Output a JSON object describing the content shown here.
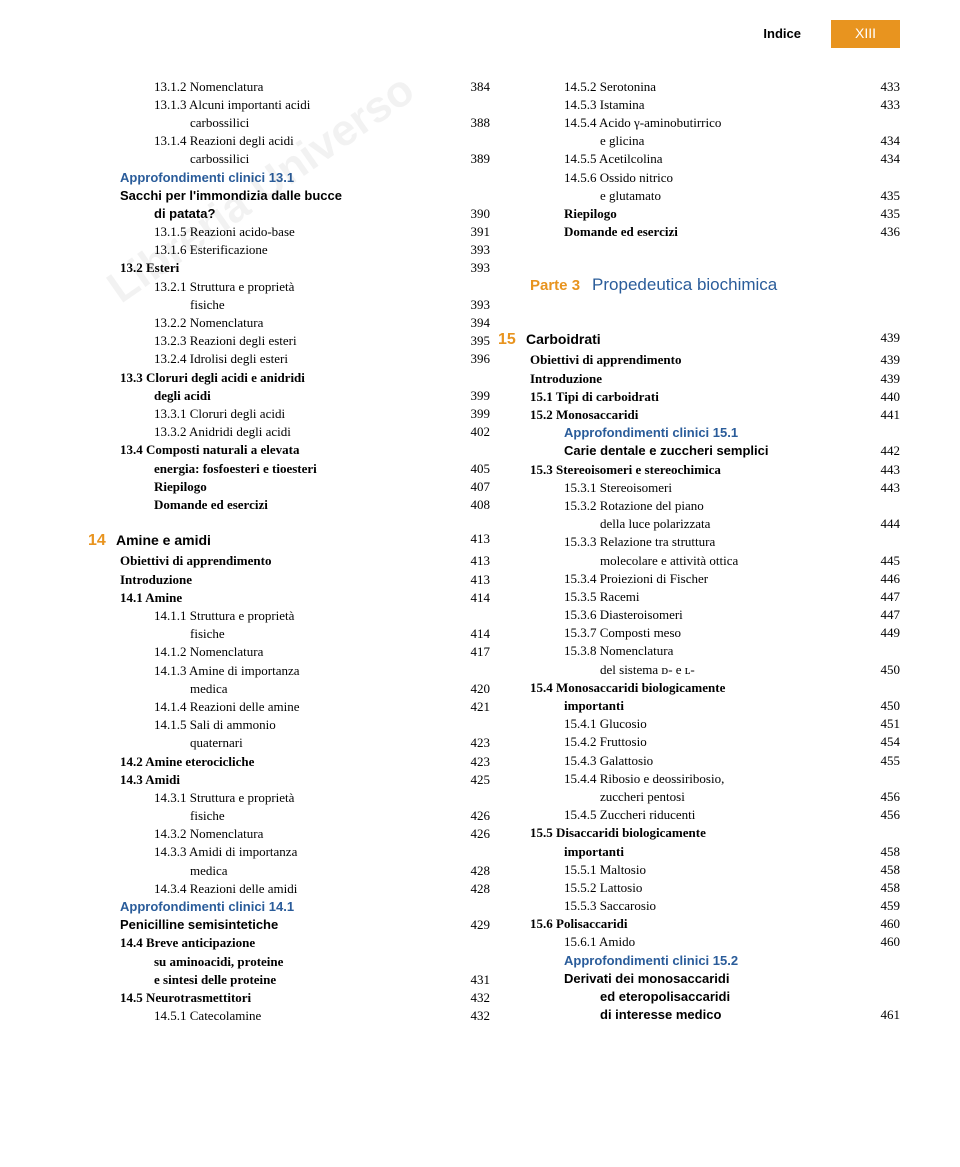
{
  "header": {
    "title": "Indice",
    "page": "XIII"
  },
  "watermark": "Libreria Universo",
  "left": [
    {
      "i": 2,
      "t": "13.1.2 Nomenclatura",
      "p": "384"
    },
    {
      "i": 2,
      "t": "13.1.3 Alcuni importanti acidi",
      "p": ""
    },
    {
      "i": 3,
      "t": "carbossilici",
      "p": "388"
    },
    {
      "i": 2,
      "t": "13.1.4 Reazioni degli acidi",
      "p": ""
    },
    {
      "i": 3,
      "t": "carbossilici",
      "p": "389"
    },
    {
      "i": 1,
      "t": "Approfondimenti clinici 13.1",
      "p": "",
      "cls": "condensed bold blue"
    },
    {
      "i": 1,
      "t": "Sacchi per l'immondizia dalle bucce",
      "p": "",
      "cls": "condensed bold"
    },
    {
      "i": 2,
      "t": "di patata?",
      "p": "390",
      "cls": "condensed bold",
      "pcls": ""
    },
    {
      "i": 2,
      "t": "13.1.5 Reazioni acido-base",
      "p": "391"
    },
    {
      "i": 2,
      "t": "13.1.6 Esterificazione",
      "p": "393"
    },
    {
      "i": 1,
      "t": "13.2 Esteri",
      "p": "393",
      "cls": "bold"
    },
    {
      "i": 2,
      "t": "13.2.1 Struttura e proprietà",
      "p": ""
    },
    {
      "i": 3,
      "t": "fisiche",
      "p": "393"
    },
    {
      "i": 2,
      "t": "13.2.2 Nomenclatura",
      "p": "394"
    },
    {
      "i": 2,
      "t": "13.2.3 Reazioni degli esteri",
      "p": "395"
    },
    {
      "i": 2,
      "t": "13.2.4 Idrolisi degli esteri",
      "p": "396"
    },
    {
      "i": 1,
      "t": "13.3 Cloruri degli acidi e anidridi",
      "p": "",
      "cls": "bold"
    },
    {
      "i": 2,
      "t": "degli acidi",
      "p": "399",
      "cls": "bold"
    },
    {
      "i": 2,
      "t": "13.3.1 Cloruri degli acidi",
      "p": "399"
    },
    {
      "i": 2,
      "t": "13.3.2 Anidridi degli acidi",
      "p": "402"
    },
    {
      "i": 1,
      "t": "13.4 Composti naturali a elevata",
      "p": "",
      "cls": "bold"
    },
    {
      "i": 2,
      "t": "energia: fosfoesteri e tioesteri",
      "p": "405",
      "cls": "bold"
    },
    {
      "i": 2,
      "t": "Riepilogo",
      "p": "407",
      "cls": "bold"
    },
    {
      "i": 2,
      "t": "Domande ed esercizi",
      "p": "408",
      "cls": "bold"
    },
    {
      "type": "spacer"
    },
    {
      "type": "chapter",
      "num": "14",
      "t": "Amine e amidi",
      "p": "413"
    },
    {
      "i": 1,
      "t": "Obiettivi di apprendimento",
      "p": "413",
      "cls": "bold"
    },
    {
      "i": 1,
      "t": "Introduzione",
      "p": "413",
      "cls": "bold"
    },
    {
      "i": 1,
      "t": "14.1 Amine",
      "p": "414",
      "cls": "bold"
    },
    {
      "i": 2,
      "t": "14.1.1 Struttura e proprietà",
      "p": ""
    },
    {
      "i": 3,
      "t": "fisiche",
      "p": "414"
    },
    {
      "i": 2,
      "t": "14.1.2 Nomenclatura",
      "p": "417"
    },
    {
      "i": 2,
      "t": "14.1.3 Amine di importanza",
      "p": ""
    },
    {
      "i": 3,
      "t": "medica",
      "p": "420"
    },
    {
      "i": 2,
      "t": "14.1.4 Reazioni delle amine",
      "p": "421"
    },
    {
      "i": 2,
      "t": "14.1.5 Sali di ammonio",
      "p": ""
    },
    {
      "i": 3,
      "t": "quaternari",
      "p": "423"
    },
    {
      "i": 1,
      "t": "14.2 Amine eterocicliche",
      "p": "423",
      "cls": "bold"
    },
    {
      "i": 1,
      "t": "14.3 Amidi",
      "p": "425",
      "cls": "bold"
    },
    {
      "i": 2,
      "t": "14.3.1 Struttura e proprietà",
      "p": ""
    },
    {
      "i": 3,
      "t": "fisiche",
      "p": "426"
    },
    {
      "i": 2,
      "t": "14.3.2 Nomenclatura",
      "p": "426"
    },
    {
      "i": 2,
      "t": "14.3.3 Amidi di importanza",
      "p": ""
    },
    {
      "i": 3,
      "t": "medica",
      "p": "428"
    },
    {
      "i": 2,
      "t": "14.3.4 Reazioni delle amidi",
      "p": "428"
    },
    {
      "i": 1,
      "t": "Approfondimenti clinici 14.1",
      "p": "",
      "cls": "condensed bold blue"
    },
    {
      "i": 1,
      "t": "Penicilline semisintetiche",
      "p": "429",
      "cls": "condensed bold"
    },
    {
      "i": 1,
      "t": "14.4 Breve anticipazione",
      "p": "",
      "cls": "bold"
    },
    {
      "i": 2,
      "t": "su aminoacidi, proteine",
      "p": "",
      "cls": "bold"
    },
    {
      "i": 2,
      "t": "e sintesi delle proteine",
      "p": "431",
      "cls": "bold"
    },
    {
      "i": 1,
      "t": "14.5 Neurotrasmettitori",
      "p": "432",
      "cls": "bold"
    },
    {
      "i": 2,
      "t": "14.5.1 Catecolamine",
      "p": "432"
    }
  ],
  "right": [
    {
      "i": 2,
      "t": "14.5.2 Serotonina",
      "p": "433"
    },
    {
      "i": 2,
      "t": "14.5.3 Istamina",
      "p": "433"
    },
    {
      "i": 2,
      "t": "14.5.4 Acido γ-aminobutirrico",
      "p": ""
    },
    {
      "i": 3,
      "t": "e glicina",
      "p": "434"
    },
    {
      "i": 2,
      "t": "14.5.5 Acetilcolina",
      "p": "434"
    },
    {
      "i": 2,
      "t": "14.5.6 Ossido nitrico",
      "p": ""
    },
    {
      "i": 3,
      "t": "e glutamato",
      "p": "435"
    },
    {
      "i": 2,
      "t": "Riepilogo",
      "p": "435",
      "cls": "bold"
    },
    {
      "i": 2,
      "t": "Domande ed esercizi",
      "p": "436",
      "cls": "bold"
    },
    {
      "type": "spacer"
    },
    {
      "type": "spacer"
    },
    {
      "type": "part",
      "num": "Parte 3",
      "t": "Propedeutica biochimica"
    },
    {
      "type": "spacer"
    },
    {
      "type": "spacer"
    },
    {
      "type": "chapter",
      "num": "15",
      "t": "Carboidrati",
      "p": "439"
    },
    {
      "i": 1,
      "t": "Obiettivi di apprendimento",
      "p": "439",
      "cls": "bold"
    },
    {
      "i": 1,
      "t": "Introduzione",
      "p": "439",
      "cls": "bold"
    },
    {
      "i": 1,
      "t": "15.1 Tipi di carboidrati",
      "p": "440",
      "cls": "bold"
    },
    {
      "i": 1,
      "t": "15.2 Monosaccaridi",
      "p": "441",
      "cls": "bold"
    },
    {
      "i": 2,
      "t": "Approfondimenti clinici 15.1",
      "p": "",
      "cls": "condensed bold blue"
    },
    {
      "i": 2,
      "t": "Carie dentale e zuccheri semplici",
      "p": "442",
      "cls": "condensed bold"
    },
    {
      "i": 1,
      "t": "15.3 Stereoisomeri e stereochimica",
      "p": "443",
      "cls": "bold"
    },
    {
      "i": 2,
      "t": "15.3.1 Stereoisomeri",
      "p": "443"
    },
    {
      "i": 2,
      "t": "15.3.2 Rotazione del piano",
      "p": ""
    },
    {
      "i": 3,
      "t": "della luce polarizzata",
      "p": "444"
    },
    {
      "i": 2,
      "t": "15.3.3 Relazione tra struttura",
      "p": ""
    },
    {
      "i": 3,
      "t": "molecolare e attività ottica",
      "p": "445"
    },
    {
      "i": 2,
      "t": "15.3.4 Proiezioni di Fischer",
      "p": "446"
    },
    {
      "i": 2,
      "t": "15.3.5 Racemi",
      "p": "447"
    },
    {
      "i": 2,
      "t": "15.3.6 Diasteroisomeri",
      "p": "447"
    },
    {
      "i": 2,
      "t": "15.3.7 Composti meso",
      "p": "449"
    },
    {
      "i": 2,
      "t": "15.3.8 Nomenclatura",
      "p": ""
    },
    {
      "i": 3,
      "t": "del sistema ᴅ- e ʟ-",
      "p": "450"
    },
    {
      "i": 1,
      "t": "15.4 Monosaccaridi biologicamente",
      "p": "",
      "cls": "bold"
    },
    {
      "i": 2,
      "t": "importanti",
      "p": "450",
      "cls": "bold"
    },
    {
      "i": 2,
      "t": "15.4.1 Glucosio",
      "p": "451"
    },
    {
      "i": 2,
      "t": "15.4.2 Fruttosio",
      "p": "454"
    },
    {
      "i": 2,
      "t": "15.4.3 Galattosio",
      "p": "455"
    },
    {
      "i": 2,
      "t": "15.4.4 Ribosio e deossiribosio,",
      "p": ""
    },
    {
      "i": 3,
      "t": "zuccheri pentosi",
      "p": "456"
    },
    {
      "i": 2,
      "t": "15.4.5 Zuccheri riducenti",
      "p": "456"
    },
    {
      "i": 1,
      "t": "15.5 Disaccaridi biologicamente",
      "p": "",
      "cls": "bold"
    },
    {
      "i": 2,
      "t": "importanti",
      "p": "458",
      "cls": "bold"
    },
    {
      "i": 2,
      "t": "15.5.1 Maltosio",
      "p": "458"
    },
    {
      "i": 2,
      "t": "15.5.2 Lattosio",
      "p": "458"
    },
    {
      "i": 2,
      "t": "15.5.3 Saccarosio",
      "p": "459"
    },
    {
      "i": 1,
      "t": "15.6 Polisaccaridi",
      "p": "460",
      "cls": "bold"
    },
    {
      "i": 2,
      "t": "15.6.1 Amido",
      "p": "460"
    },
    {
      "i": 2,
      "t": "Approfondimenti clinici 15.2",
      "p": "",
      "cls": "condensed bold blue"
    },
    {
      "i": 2,
      "t": "Derivati dei monosaccaridi",
      "p": "",
      "cls": "condensed bold"
    },
    {
      "i": 3,
      "t": "ed eteropolisaccaridi",
      "p": "",
      "cls": "condensed bold"
    },
    {
      "i": 3,
      "t": "di interesse medico",
      "p": "461",
      "cls": "condensed bold"
    }
  ]
}
